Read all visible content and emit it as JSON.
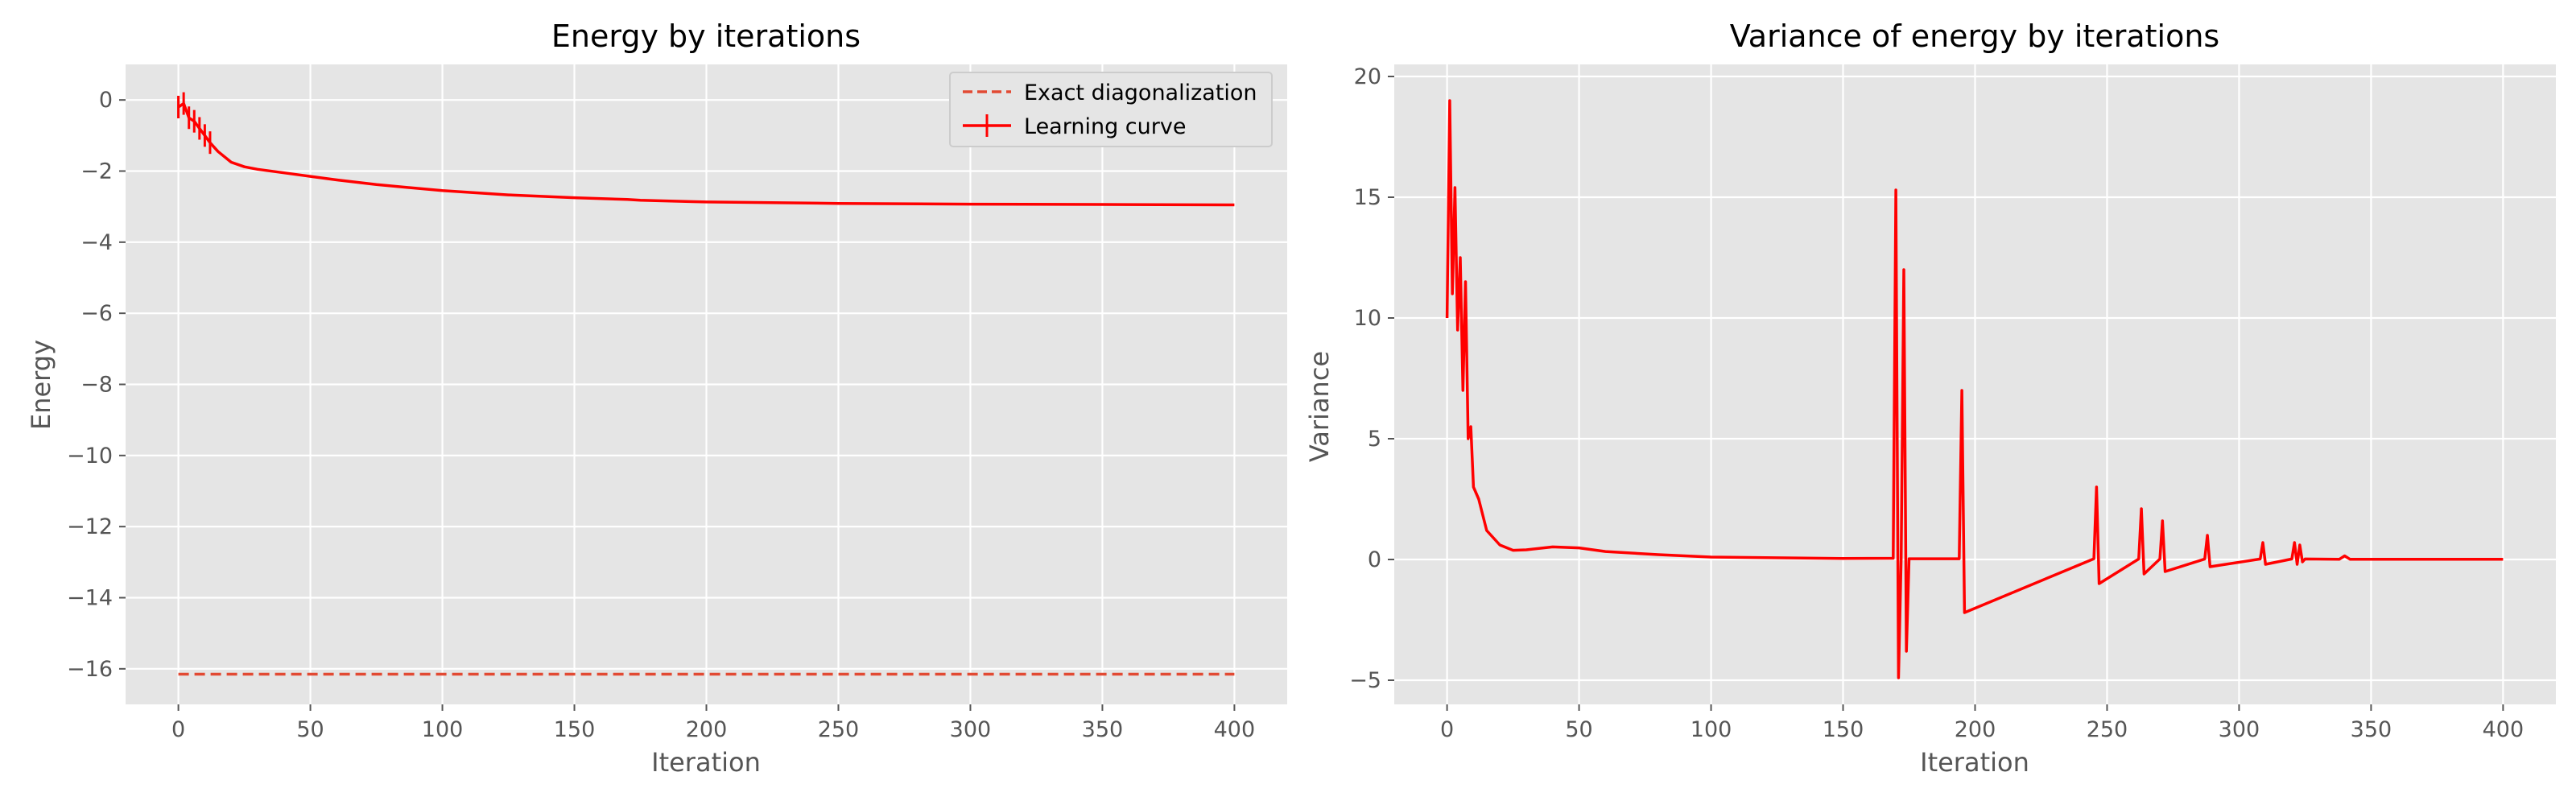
{
  "chart_data": [
    {
      "type": "line",
      "title": "Energy by iterations",
      "xlabel": "Iteration",
      "ylabel": "Energy",
      "xlim": [
        -20,
        420
      ],
      "ylim": [
        -17,
        1
      ],
      "xticks": [
        0,
        50,
        100,
        150,
        200,
        250,
        300,
        350,
        400
      ],
      "yticks": [
        0,
        -2,
        -4,
        -6,
        -8,
        -10,
        -12,
        -14,
        -16
      ],
      "grid": true,
      "legend_position": "top-right",
      "series": [
        {
          "name": "Exact diagonalization",
          "style": "dashed",
          "color": "#e24a33",
          "x": [
            0,
            400
          ],
          "y": [
            -16.15,
            -16.15
          ]
        },
        {
          "name": "Learning curve",
          "style": "solid-with-errorbars",
          "color": "#ff0000",
          "x": [
            0,
            2,
            4,
            6,
            8,
            10,
            12,
            15,
            20,
            25,
            30,
            40,
            50,
            60,
            75,
            100,
            125,
            150,
            170,
            175,
            195,
            200,
            250,
            300,
            350,
            400
          ],
          "y": [
            -0.2,
            -0.1,
            -0.5,
            -0.6,
            -0.8,
            -1.0,
            -1.2,
            -1.45,
            -1.75,
            -1.88,
            -1.95,
            -2.05,
            -2.15,
            -2.25,
            -2.38,
            -2.55,
            -2.67,
            -2.75,
            -2.8,
            -2.82,
            -2.86,
            -2.87,
            -2.91,
            -2.93,
            -2.94,
            -2.95
          ]
        }
      ]
    },
    {
      "type": "line",
      "title": "Variance of energy by iterations",
      "xlabel": "Iteration",
      "ylabel": "Variance",
      "xlim": [
        -20,
        420
      ],
      "ylim": [
        -6,
        20.5
      ],
      "xticks": [
        0,
        50,
        100,
        150,
        200,
        250,
        300,
        350,
        400
      ],
      "yticks": [
        -5,
        0,
        5,
        10,
        15,
        20
      ],
      "grid": true,
      "series": [
        {
          "color": "#ff0000",
          "x": [
            0,
            1,
            2,
            3,
            4,
            5,
            6,
            7,
            8,
            9,
            10,
            12,
            15,
            20,
            25,
            30,
            40,
            50,
            60,
            80,
            100,
            150,
            169,
            170,
            171,
            172,
            173,
            174,
            175,
            194,
            195,
            196,
            245,
            246,
            247,
            262,
            263,
            264,
            270,
            271,
            272,
            287,
            288,
            289,
            308,
            309,
            310,
            320,
            321,
            322,
            323,
            324,
            325,
            338,
            340,
            342,
            360,
            400
          ],
          "y": [
            10,
            19,
            11,
            15.4,
            9.5,
            12.5,
            7,
            11.5,
            5,
            5.5,
            3,
            2.5,
            1.2,
            0.6,
            0.38,
            0.4,
            0.52,
            0.48,
            0.33,
            0.2,
            0.1,
            0.04,
            0.05,
            15.3,
            -4.9,
            0.05,
            12,
            -3.8,
            0.03,
            0.03,
            7,
            -2.2,
            0.03,
            3,
            -1,
            0.02,
            2.1,
            -0.6,
            0.02,
            1.6,
            -0.5,
            0.02,
            1,
            -0.3,
            0.02,
            0.7,
            -0.2,
            0.02,
            0.7,
            -0.2,
            0.6,
            -0.1,
            0.02,
            0.01,
            0.15,
            0.01,
            0.01,
            0.01
          ]
        }
      ]
    }
  ]
}
